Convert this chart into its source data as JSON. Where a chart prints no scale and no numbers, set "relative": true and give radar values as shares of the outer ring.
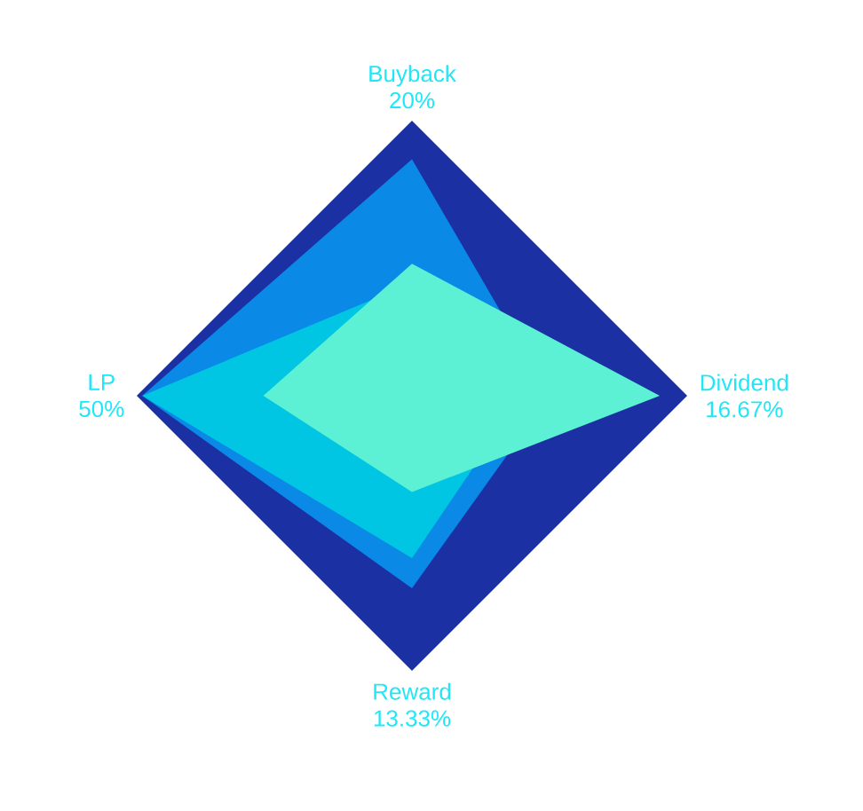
{
  "chart_data": {
    "type": "radar",
    "relative": true,
    "categories": [
      "Buyback",
      "Dividend",
      "Reward",
      "LP"
    ],
    "series": [
      {
        "color": "#0a8ae6",
        "values": [
          0.86,
          0.5,
          0.7,
          0.98
        ]
      },
      {
        "color": "#00c6e4",
        "values": [
          0.41,
          0.4,
          0.59,
          0.98
        ]
      },
      {
        "color": "#5cf0d4",
        "values": [
          0.48,
          0.9,
          0.35,
          0.54
        ]
      }
    ],
    "annotations": [
      {
        "text": "20%",
        "x": "Buyback"
      },
      {
        "text": "16.67%",
        "x": "Dividend"
      },
      {
        "text": "13.33%",
        "x": "Reward"
      },
      {
        "text": "50%",
        "x": "LP"
      }
    ]
  }
}
